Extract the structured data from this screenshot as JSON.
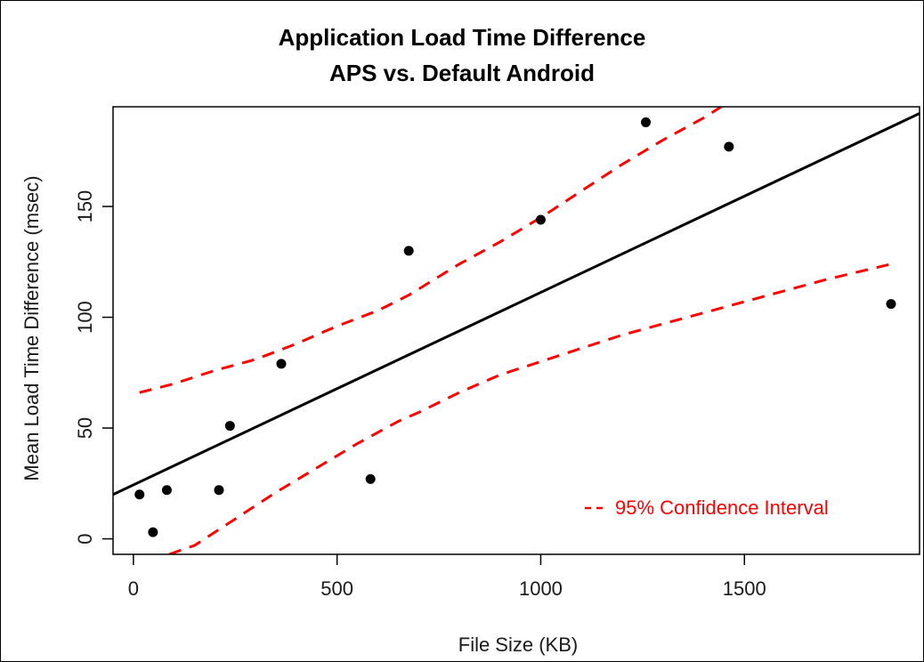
{
  "chart_data": {
    "type": "scatter",
    "title": "Application Load Time Difference",
    "subtitle": "APS vs. Default Android",
    "xlabel": "File Size (KB)",
    "ylabel": "Mean Load Time Difference (msec)",
    "xlim": [
      -50,
      1930
    ],
    "ylim": [
      -7,
      195
    ],
    "xticks": [
      0,
      500,
      1000,
      1500
    ],
    "yticks": [
      0,
      50,
      100,
      150
    ],
    "grid": false,
    "legend_position": "bottom-right",
    "legend_label": "95% Confidence Interval",
    "colors": {
      "points": "#000000",
      "fit_line": "#000000",
      "confidence": "#ff0000"
    },
    "points": {
      "x": [
        15,
        48,
        82,
        210,
        237,
        363,
        582,
        676,
        1000,
        1258,
        1462,
        1860
      ],
      "y": [
        20,
        3,
        22,
        22,
        51,
        79,
        27,
        130,
        144,
        188,
        177,
        106
      ]
    },
    "fit_line": {
      "x": [
        -50,
        1930
      ],
      "y": [
        20,
        192
      ]
    },
    "confidence_upper": {
      "x": [
        15,
        100,
        200,
        300,
        400,
        500,
        600,
        676,
        800,
        900,
        1000,
        1100,
        1200,
        1300,
        1400,
        1443
      ],
      "y": [
        66,
        70,
        76,
        81,
        88,
        96,
        103,
        110,
        124,
        134,
        145,
        157,
        169,
        180,
        190,
        195
      ]
    },
    "confidence_lower": {
      "x": [
        88,
        150,
        250,
        350,
        450,
        550,
        650,
        700,
        800,
        900,
        1000,
        1100,
        1200,
        1300,
        1400,
        1500,
        1600,
        1700,
        1860
      ],
      "y": [
        -7,
        -3,
        9,
        21,
        32,
        43,
        53,
        57,
        66,
        74,
        80,
        86,
        92,
        97,
        102,
        107,
        112,
        117,
        124
      ]
    }
  }
}
